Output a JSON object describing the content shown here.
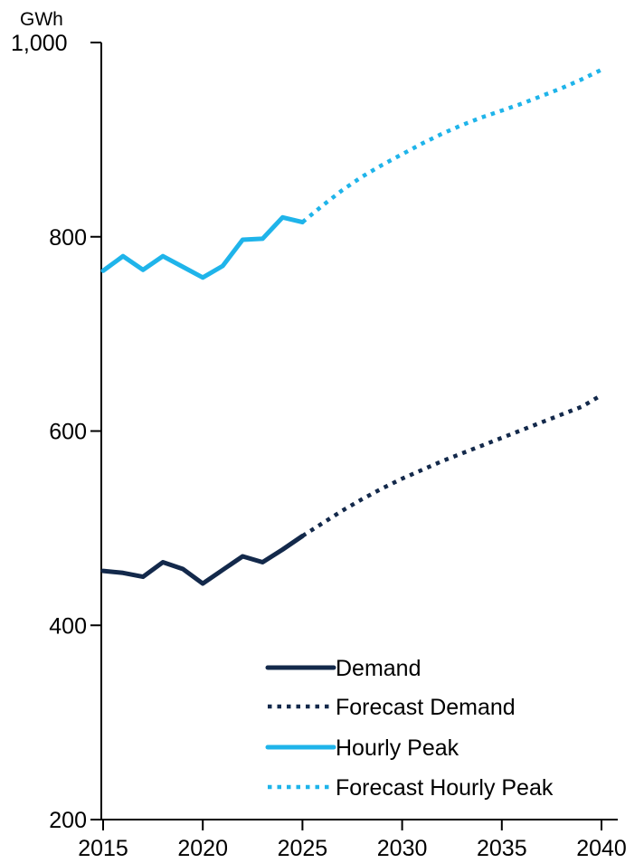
{
  "chart_data": {
    "type": "line",
    "title": "",
    "xlabel": "",
    "ylabel": "",
    "y_unit_label": "GWh",
    "xlim": [
      2015,
      2040
    ],
    "ylim": [
      200,
      1000
    ],
    "x_ticks": [
      2015,
      2020,
      2025,
      2030,
      2035,
      2040
    ],
    "y_ticks": [
      200,
      400,
      600,
      800,
      1000
    ],
    "x_tick_labels": [
      "2015",
      "2020",
      "2025",
      "2030",
      "2035",
      "2040"
    ],
    "y_tick_labels": [
      "200",
      "400",
      "600",
      "800",
      "1,000"
    ],
    "grid": false,
    "legend_position": "bottom-right",
    "series": [
      {
        "name": "Demand",
        "color": "#13294b",
        "style": "solid",
        "x": [
          2015,
          2016,
          2017,
          2018,
          2019,
          2020,
          2021,
          2022,
          2023,
          2024,
          2025
        ],
        "y": [
          456,
          454,
          450,
          465,
          458,
          443,
          457,
          471,
          465,
          478,
          492
        ]
      },
      {
        "name": "Forecast Demand",
        "color": "#13294b",
        "style": "dotted",
        "x": [
          2025,
          2026,
          2027,
          2028,
          2029,
          2030,
          2031,
          2032,
          2033,
          2034,
          2035,
          2036,
          2037,
          2038,
          2039,
          2040
        ],
        "y": [
          492,
          505,
          518,
          530,
          541,
          551,
          560,
          569,
          577,
          585,
          593,
          601,
          609,
          617,
          625,
          637
        ]
      },
      {
        "name": "Hourly Peak",
        "color": "#1fb4ea",
        "style": "solid",
        "x": [
          2015,
          2016,
          2017,
          2018,
          2019,
          2020,
          2021,
          2022,
          2023,
          2024,
          2025
        ],
        "y": [
          765,
          780,
          766,
          780,
          769,
          758,
          770,
          797,
          798,
          820,
          815
        ]
      },
      {
        "name": "Forecast Hourly Peak",
        "color": "#1fb4ea",
        "style": "dotted",
        "x": [
          2025,
          2026,
          2027,
          2028,
          2029,
          2030,
          2031,
          2032,
          2033,
          2034,
          2035,
          2036,
          2037,
          2038,
          2039,
          2040
        ],
        "y": [
          815,
          832,
          848,
          862,
          874,
          885,
          896,
          906,
          915,
          923,
          930,
          937,
          945,
          953,
          962,
          972
        ]
      }
    ]
  }
}
